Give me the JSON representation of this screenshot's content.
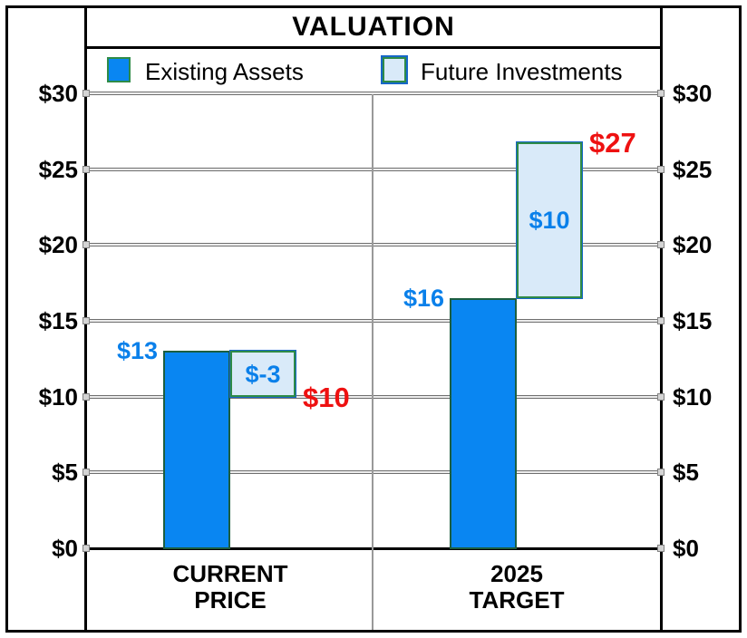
{
  "title": "VALUATION",
  "colors": {
    "existing_fill": "#0986F2",
    "existing_border": "#1C5E40",
    "future_fill": "#D9EAF9",
    "future_border": "#2E8B47",
    "future_outer_border": "#1767C8",
    "label_blue": "#0A80EA",
    "label_red": "#EE1111",
    "gridline_gray": "#6F6F6F",
    "divider_gray": "#999999",
    "axis_black": "#000000"
  },
  "chart_data": {
    "type": "bar",
    "subtype": "stacked-waterfall",
    "title": "VALUATION",
    "xlabel": "",
    "ylabel": "",
    "ylim": [
      0,
      30
    ],
    "grid": true,
    "legend_position": "top",
    "legend": [
      "Existing Assets",
      "Future Investments"
    ],
    "y_ticks": [
      {
        "value": 0,
        "label": "$0"
      },
      {
        "value": 5,
        "label": "$5"
      },
      {
        "value": 10,
        "label": "$10"
      },
      {
        "value": 15,
        "label": "$15"
      },
      {
        "value": 20,
        "label": "$20"
      },
      {
        "value": 25,
        "label": "$25"
      },
      {
        "value": 30,
        "label": "$30"
      }
    ],
    "groups": [
      {
        "category_line1": "CURRENT",
        "category_line2": "PRICE",
        "existing_value": 13,
        "existing_label": "$13",
        "future_value": -3,
        "future_label": "$-3",
        "total_value": 10,
        "total_label": "$10",
        "drawn": {
          "existing_top": 13,
          "future_from": 13,
          "future_to": 10,
          "total_at": 10
        }
      },
      {
        "category_line1": "2025",
        "category_line2": "TARGET",
        "existing_value": 16,
        "existing_label": "$16",
        "future_value": 10,
        "future_label": "$10",
        "total_value": 27,
        "total_label": "$27",
        "drawn": {
          "existing_top": 16.5,
          "future_from": 16.5,
          "future_to": 26.8,
          "total_at": 26.8
        }
      }
    ]
  }
}
